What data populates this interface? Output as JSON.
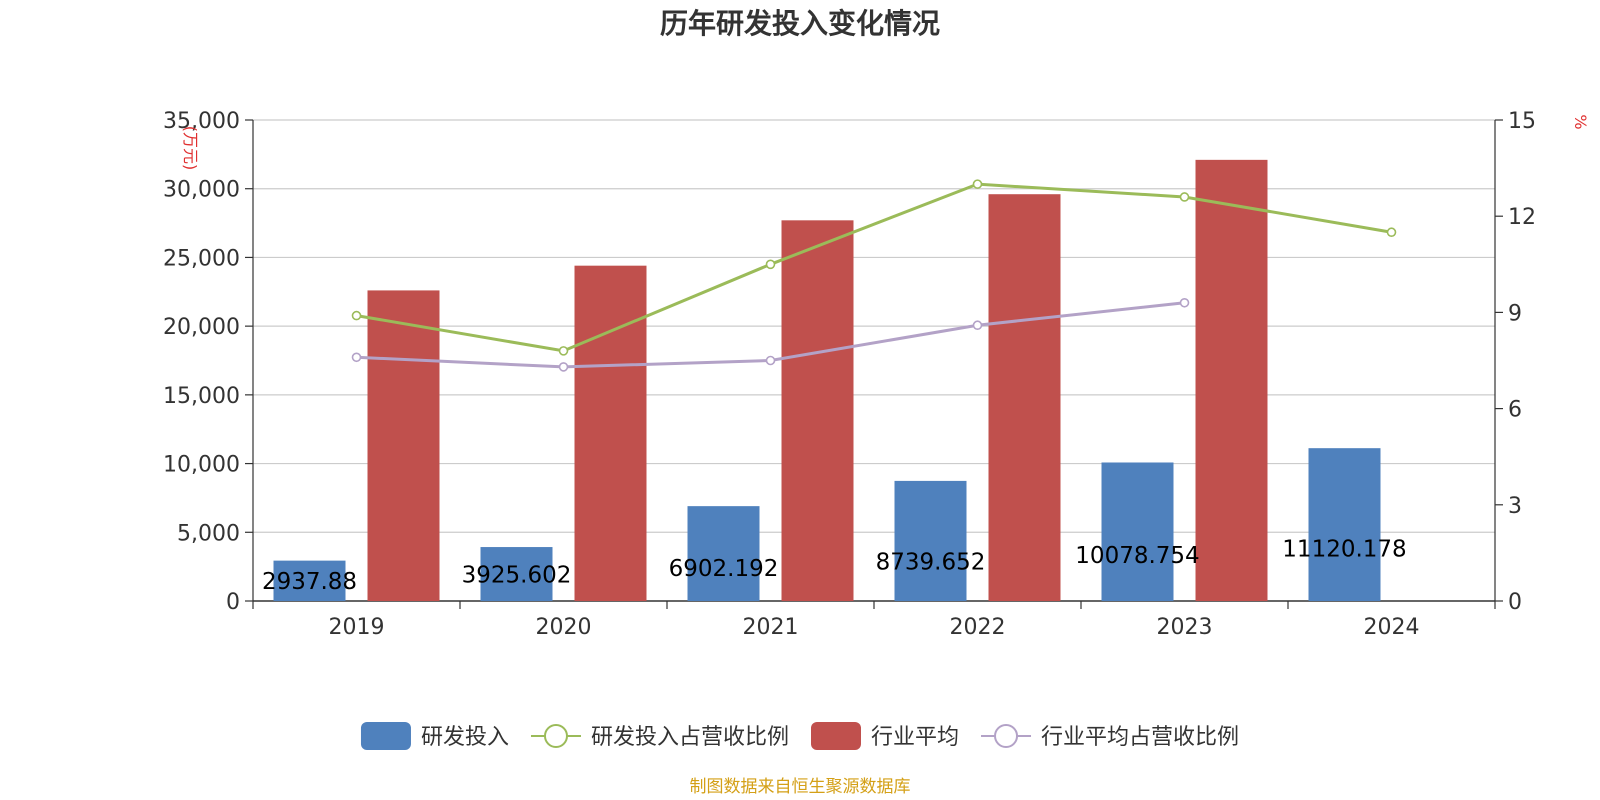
{
  "chart_data": {
    "type": "bar",
    "title": "历年研发投入变化情况",
    "categories": [
      "2019",
      "2020",
      "2021",
      "2022",
      "2023",
      "2024"
    ],
    "y_left": {
      "unit_label": "(万元)",
      "ylim": [
        0,
        35000
      ],
      "ticks": [
        0,
        5000,
        10000,
        15000,
        20000,
        25000,
        30000,
        35000
      ],
      "tick_labels": [
        "0",
        "5,000",
        "10,000",
        "15,000",
        "20,000",
        "25,000",
        "30,000",
        "35,000"
      ]
    },
    "y_right": {
      "unit_label": "%",
      "ylim": [
        0,
        15
      ],
      "ticks": [
        0,
        3,
        6,
        9,
        12,
        15
      ],
      "tick_labels": [
        "0",
        "3",
        "6",
        "9",
        "12",
        "15"
      ]
    },
    "grid": true,
    "legend_position": "bottom",
    "series": [
      {
        "name": "研发投入",
        "kind": "bar",
        "axis": "left",
        "color": "#4f81bd",
        "values": [
          2937.88,
          3925.602,
          6902.192,
          8739.652,
          10078.754,
          11120.178
        ],
        "labels": [
          "2937.88",
          "3925.602",
          "6902.192",
          "8739.652",
          "10078.754",
          "11120.178"
        ]
      },
      {
        "name": "研发投入占营收比例",
        "kind": "line",
        "axis": "right",
        "color": "#9bbb59",
        "values": [
          8.9,
          7.8,
          10.5,
          13.0,
          12.6,
          11.5
        ]
      },
      {
        "name": "行业平均",
        "kind": "bar",
        "axis": "left",
        "color": "#c0504d",
        "values": [
          22600,
          24400,
          27700,
          29600,
          32100,
          null
        ]
      },
      {
        "name": "行业平均占营收比例",
        "kind": "line",
        "axis": "right",
        "color": "#b3a2c7",
        "values": [
          7.6,
          7.3,
          7.5,
          8.6,
          9.3,
          null
        ]
      }
    ]
  },
  "source_text": "制图数据来自恒生聚源数据库"
}
